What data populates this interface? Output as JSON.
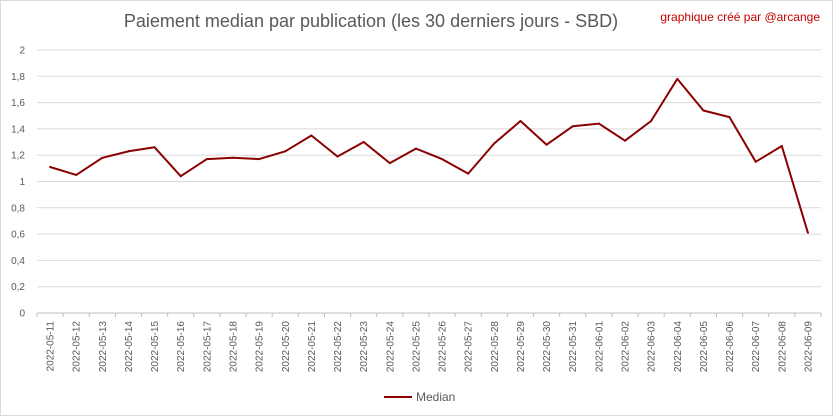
{
  "title": "Paiement median par publication (les 30 derniers jours - SBD)",
  "credit": "graphique créé par @arcange",
  "chart_data": {
    "type": "line",
    "title": "Paiement median par publication (les 30 derniers jours - SBD)",
    "xlabel": "",
    "ylabel": "",
    "ylim": [
      0,
      2
    ],
    "yticks": [
      "0",
      "0,2",
      "0,4",
      "0,6",
      "0,8",
      "1",
      "1,2",
      "1,4",
      "1,6",
      "1,8",
      "2"
    ],
    "grid": true,
    "legend_position": "bottom",
    "color": "#8b0000",
    "categories": [
      "2022-05-11",
      "2022-05-12",
      "2022-05-13",
      "2022-05-14",
      "2022-05-15",
      "2022-05-16",
      "2022-05-17",
      "2022-05-18",
      "2022-05-19",
      "2022-05-20",
      "2022-05-21",
      "2022-05-22",
      "2022-05-23",
      "2022-05-24",
      "2022-05-25",
      "2022-05-26",
      "2022-05-27",
      "2022-05-28",
      "2022-05-29",
      "2022-05-30",
      "2022-05-31",
      "2022-06-01",
      "2022-06-02",
      "2022-06-03",
      "2022-06-04",
      "2022-06-05",
      "2022-06-06",
      "2022-06-07",
      "2022-06-08",
      "2022-06-09"
    ],
    "series": [
      {
        "name": "Median",
        "values": [
          1.11,
          1.05,
          1.18,
          1.23,
          1.26,
          1.04,
          1.17,
          1.18,
          1.17,
          1.23,
          1.35,
          1.19,
          1.3,
          1.14,
          1.25,
          1.17,
          1.06,
          1.29,
          1.46,
          1.28,
          1.42,
          1.44,
          1.31,
          1.46,
          1.78,
          1.54,
          1.49,
          1.15,
          1.27,
          0.61
        ]
      }
    ]
  }
}
